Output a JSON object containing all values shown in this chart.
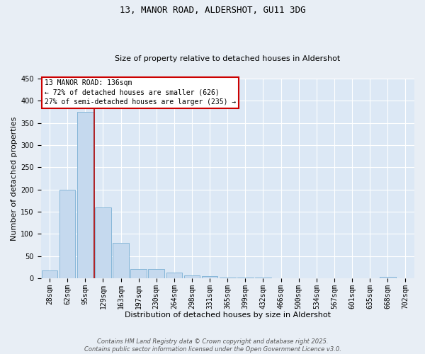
{
  "title1": "13, MANOR ROAD, ALDERSHOT, GU11 3DG",
  "title2": "Size of property relative to detached houses in Aldershot",
  "xlabel": "Distribution of detached houses by size in Aldershot",
  "ylabel": "Number of detached properties",
  "categories": [
    "28sqm",
    "62sqm",
    "95sqm",
    "129sqm",
    "163sqm",
    "197sqm",
    "230sqm",
    "264sqm",
    "298sqm",
    "331sqm",
    "365sqm",
    "399sqm",
    "432sqm",
    "466sqm",
    "500sqm",
    "534sqm",
    "567sqm",
    "601sqm",
    "635sqm",
    "668sqm",
    "702sqm"
  ],
  "values": [
    18,
    200,
    375,
    160,
    80,
    20,
    20,
    12,
    7,
    5,
    2,
    1,
    1,
    0,
    0,
    0,
    0,
    0,
    0,
    3,
    0
  ],
  "bar_color": "#c5d9ee",
  "bar_edge_color": "#7aafd4",
  "vline_color": "#aa0000",
  "vline_x": 2.5,
  "annotation_line1": "13 MANOR ROAD: 136sqm",
  "annotation_line2": "← 72% of detached houses are smaller (626)",
  "annotation_line3": "27% of semi-detached houses are larger (235) →",
  "annotation_box_edgecolor": "#cc0000",
  "ylim": [
    0,
    450
  ],
  "yticks": [
    0,
    50,
    100,
    150,
    200,
    250,
    300,
    350,
    400,
    450
  ],
  "plot_bg_color": "#dce8f5",
  "fig_bg_color": "#e8eef5",
  "grid_color": "#ffffff",
  "footer": "Contains HM Land Registry data © Crown copyright and database right 2025.\nContains public sector information licensed under the Open Government Licence v3.0.",
  "title1_fontsize": 9,
  "title2_fontsize": 8,
  "ylabel_fontsize": 8,
  "xlabel_fontsize": 8,
  "tick_fontsize": 7,
  "footer_fontsize": 6,
  "annotation_fontsize": 7
}
